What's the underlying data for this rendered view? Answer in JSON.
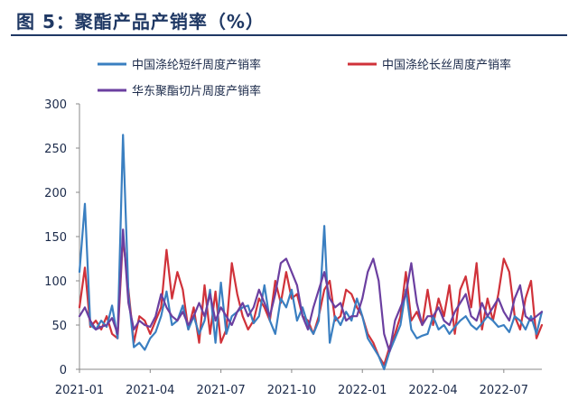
{
  "title": "图 5：聚酯产品产销率（%）",
  "colors": {
    "title": "#1f3864",
    "series": [
      "#3a7fc1",
      "#d0323a",
      "#6b3fa0"
    ],
    "axis": "#888888"
  },
  "chart_data": {
    "type": "line",
    "title": "图 5：聚酯产品产销率（%）",
    "xlabel": "",
    "ylabel": "",
    "ylim": [
      0,
      300
    ],
    "yticks": [
      0,
      50,
      100,
      150,
      200,
      250,
      300
    ],
    "x_tick_labels": [
      "2021-01",
      "2021-04",
      "2021-07",
      "2021-10",
      "2022-01",
      "2022-04",
      "2022-07"
    ],
    "x_tick_index": [
      0,
      13,
      26,
      39,
      52,
      65,
      78
    ],
    "grid": false,
    "legend": "top",
    "legend_entries": [
      "中国涤纶短纤周度产销率",
      "中国涤纶长丝周度产销率",
      "华东聚酯切片周度产销率"
    ],
    "series": [
      {
        "name": "中国涤纶短纤周度产销率",
        "color": "#3a7fc1",
        "values": [
          110,
          187,
          50,
          45,
          55,
          48,
          72,
          35,
          265,
          85,
          25,
          30,
          22,
          35,
          42,
          60,
          88,
          50,
          55,
          72,
          45,
          60,
          40,
          55,
          90,
          30,
          98,
          40,
          60,
          65,
          70,
          72,
          52,
          60,
          95,
          55,
          40,
          80,
          70,
          90,
          55,
          70,
          50,
          40,
          55,
          162,
          30,
          60,
          50,
          65,
          55,
          80,
          60,
          35,
          25,
          15,
          0,
          20,
          35,
          50,
          90,
          45,
          35,
          38,
          40,
          60,
          45,
          50,
          40,
          48,
          55,
          60,
          50,
          45,
          52,
          60,
          55,
          48,
          50,
          42,
          60,
          55,
          45,
          60,
          40,
          65
        ]
      },
      {
        "name": "中国涤纶长丝周度产销率",
        "color": "#d0323a",
        "values": [
          70,
          115,
          48,
          55,
          45,
          60,
          40,
          35,
          150,
          90,
          30,
          60,
          55,
          40,
          55,
          70,
          135,
          80,
          110,
          90,
          45,
          70,
          30,
          95,
          40,
          88,
          30,
          45,
          120,
          85,
          60,
          45,
          55,
          80,
          70,
          55,
          100,
          75,
          110,
          80,
          85,
          60,
          55,
          40,
          60,
          90,
          100,
          55,
          60,
          90,
          85,
          70,
          60,
          40,
          30,
          15,
          5,
          25,
          40,
          60,
          110,
          55,
          65,
          50,
          90,
          50,
          80,
          60,
          95,
          40,
          90,
          105,
          70,
          120,
          45,
          80,
          55,
          85,
          125,
          110,
          60,
          45,
          80,
          100,
          35,
          50
        ]
      },
      {
        "name": "华东聚酯切片周度产销率",
        "color": "#6b3fa0",
        "values": [
          60,
          70,
          55,
          45,
          48,
          50,
          58,
          40,
          158,
          75,
          45,
          55,
          50,
          48,
          60,
          85,
          70,
          60,
          55,
          65,
          50,
          60,
          75,
          60,
          85,
          55,
          70,
          60,
          50,
          65,
          75,
          60,
          70,
          90,
          75,
          60,
          85,
          120,
          125,
          110,
          95,
          60,
          45,
          70,
          90,
          110,
          80,
          70,
          75,
          55,
          60,
          60,
          80,
          110,
          125,
          100,
          40,
          20,
          55,
          70,
          85,
          120,
          75,
          50,
          60,
          60,
          70,
          55,
          50,
          65,
          75,
          85,
          60,
          55,
          75,
          60,
          70,
          80,
          65,
          55,
          80,
          95,
          60,
          55,
          60,
          65
        ]
      }
    ]
  }
}
